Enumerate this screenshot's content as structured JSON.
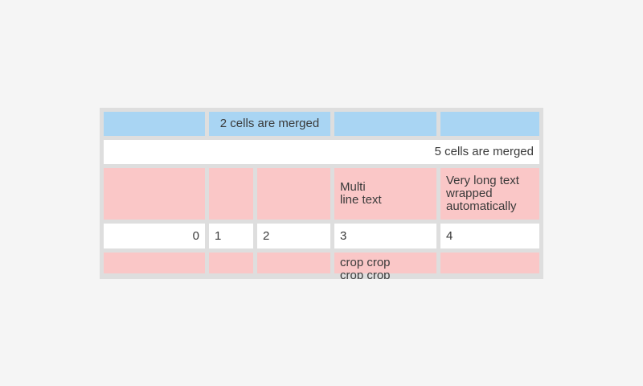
{
  "page": {
    "background_color": "#f5f5f5"
  },
  "table": {
    "colors": {
      "blue_cell": "#a9d5f3",
      "pink_cell": "#fac7c7",
      "white_cell": "#ffffff",
      "grid_background": "#dedede",
      "text": "#3a3a3a"
    },
    "row1": {
      "merged_label": "2 cells are merged"
    },
    "row2": {
      "merged_label": "5 cells are merged"
    },
    "row3": {
      "multi_line_label": "Multi\nline text",
      "wrapped_label": "Very long text wrapped automatically"
    },
    "row4": {
      "values": [
        "0",
        "1",
        "2",
        "3",
        "4"
      ]
    },
    "row5": {
      "cropped_label": "crop crop crop crop"
    }
  }
}
